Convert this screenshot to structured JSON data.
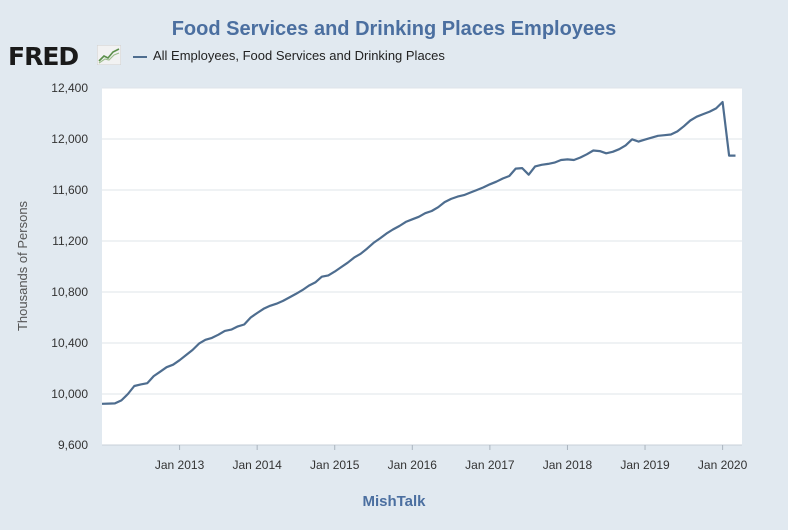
{
  "title": "Food Services and Drinking Places Employees",
  "brand": {
    "logo_text": "FRED"
  },
  "legend": {
    "label": "All Employees, Food Services and Drinking Places",
    "color": "#4e6d8f"
  },
  "footer": "MishTalk",
  "colors": {
    "background": "#e1e9f0",
    "plot_background": "#ffffff",
    "title": "#4b6fa0",
    "grid": "#dfe4ea",
    "axis_text": "#333333"
  },
  "chart_data": {
    "type": "line",
    "title": "Food Services and Drinking Places Employees",
    "xlabel": "",
    "ylabel": "Thousands of Persons",
    "ylim": [
      9600,
      12400
    ],
    "yticks": [
      9600,
      10000,
      10400,
      10800,
      11200,
      11600,
      12000,
      12400
    ],
    "ytick_labels": [
      "9,600",
      "10,000",
      "10,400",
      "10,800",
      "11,200",
      "11,600",
      "12,000",
      "12,400"
    ],
    "xlim": [
      "2012-01",
      "2020-04"
    ],
    "xticks": [
      "2013-01",
      "2014-01",
      "2015-01",
      "2016-01",
      "2017-01",
      "2018-01",
      "2019-01",
      "2020-01"
    ],
    "xtick_labels": [
      "Jan 2013",
      "Jan 2014",
      "Jan 2015",
      "Jan 2016",
      "Jan 2017",
      "Jan 2018",
      "Jan 2019",
      "Jan 2020"
    ],
    "series": [
      {
        "name": "All Employees, Food Services and Drinking Places",
        "x": [
          "2012-01",
          "2012-02",
          "2012-03",
          "2012-04",
          "2012-05",
          "2012-06",
          "2012-07",
          "2012-08",
          "2012-09",
          "2012-10",
          "2012-11",
          "2012-12",
          "2013-01",
          "2013-02",
          "2013-03",
          "2013-04",
          "2013-05",
          "2013-06",
          "2013-07",
          "2013-08",
          "2013-09",
          "2013-10",
          "2013-11",
          "2013-12",
          "2014-01",
          "2014-02",
          "2014-03",
          "2014-04",
          "2014-05",
          "2014-06",
          "2014-07",
          "2014-08",
          "2014-09",
          "2014-10",
          "2014-11",
          "2014-12",
          "2015-01",
          "2015-02",
          "2015-03",
          "2015-04",
          "2015-05",
          "2015-06",
          "2015-07",
          "2015-08",
          "2015-09",
          "2015-10",
          "2015-11",
          "2015-12",
          "2016-01",
          "2016-02",
          "2016-03",
          "2016-04",
          "2016-05",
          "2016-06",
          "2016-07",
          "2016-08",
          "2016-09",
          "2016-10",
          "2016-11",
          "2016-12",
          "2017-01",
          "2017-02",
          "2017-03",
          "2017-04",
          "2017-05",
          "2017-06",
          "2017-07",
          "2017-08",
          "2017-09",
          "2017-10",
          "2017-11",
          "2017-12",
          "2018-01",
          "2018-02",
          "2018-03",
          "2018-04",
          "2018-05",
          "2018-06",
          "2018-07",
          "2018-08",
          "2018-09",
          "2018-10",
          "2018-11",
          "2018-12",
          "2019-01",
          "2019-02",
          "2019-03",
          "2019-04",
          "2019-05",
          "2019-06",
          "2019-07",
          "2019-08",
          "2019-09",
          "2019-10",
          "2019-11",
          "2019-12",
          "2020-01",
          "2020-02",
          "2020-03"
        ],
        "values": [
          9923,
          9925,
          9926,
          9950,
          10000,
          10063,
          10075,
          10085,
          10140,
          10175,
          10210,
          10230,
          10265,
          10305,
          10345,
          10395,
          10425,
          10440,
          10465,
          10495,
          10505,
          10530,
          10545,
          10600,
          10635,
          10668,
          10692,
          10708,
          10730,
          10758,
          10785,
          10815,
          10850,
          10875,
          10920,
          10930,
          10960,
          10995,
          11030,
          11070,
          11100,
          11140,
          11185,
          11220,
          11258,
          11290,
          11318,
          11350,
          11370,
          11390,
          11418,
          11435,
          11465,
          11505,
          11530,
          11548,
          11560,
          11580,
          11600,
          11620,
          11645,
          11665,
          11690,
          11710,
          11768,
          11772,
          11720,
          11785,
          11798,
          11805,
          11815,
          11835,
          11840,
          11835,
          11855,
          11880,
          11910,
          11905,
          11888,
          11900,
          11920,
          11950,
          11998,
          11980,
          11995,
          12010,
          12025,
          12030,
          12035,
          12060,
          12100,
          12145,
          12175,
          12195,
          12215,
          12240,
          12290,
          11870,
          11870
        ]
      }
    ]
  }
}
